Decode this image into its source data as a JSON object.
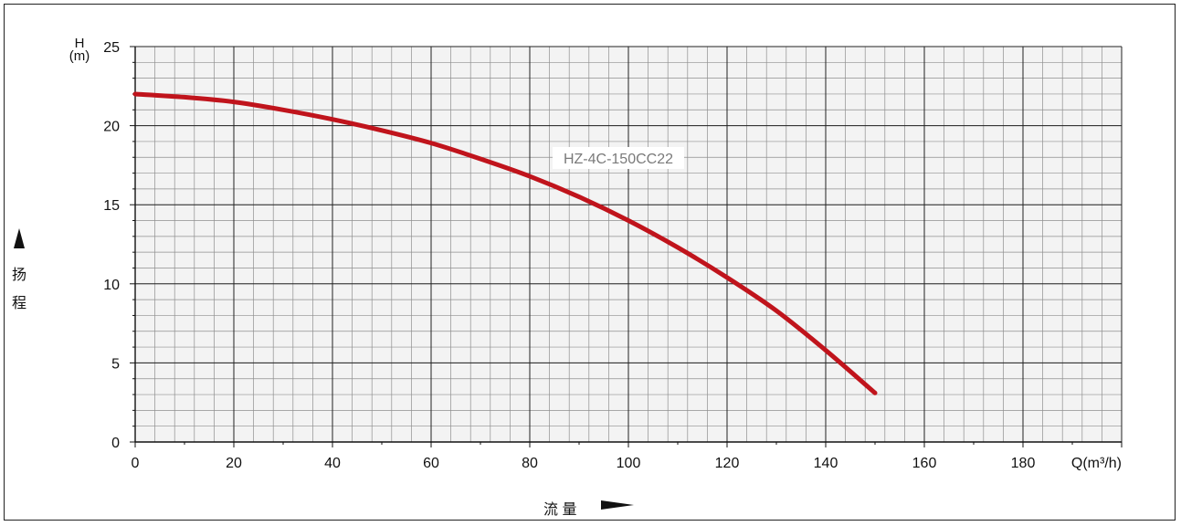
{
  "chart_data": {
    "type": "line",
    "series": [
      {
        "name": "HZ-4C-150CC22",
        "x": [
          0,
          10,
          20,
          30,
          40,
          50,
          60,
          70,
          80,
          90,
          100,
          110,
          120,
          130,
          140,
          150
        ],
        "y": [
          22,
          21.8,
          21.5,
          21.0,
          20.4,
          19.7,
          18.9,
          17.9,
          16.8,
          15.5,
          14.0,
          12.3,
          10.4,
          8.3,
          5.8,
          3.1
        ]
      }
    ],
    "x_ticks": [
      "0",
      "20",
      "40",
      "60",
      "80",
      "100",
      "120",
      "140",
      "160",
      "180"
    ],
    "y_ticks": [
      "0",
      "5",
      "10",
      "15",
      "20",
      "25"
    ],
    "xlim": [
      0,
      200
    ],
    "ylim": [
      0,
      25
    ],
    "x_unit_label": "Q(m³/h)",
    "y_axis_label_top": "H",
    "y_axis_label_unit": "(m)",
    "y_axis_title_chars": [
      "扬",
      "程"
    ],
    "x_axis_title": "流 量",
    "grid": true,
    "line_color": "#c0141c"
  }
}
